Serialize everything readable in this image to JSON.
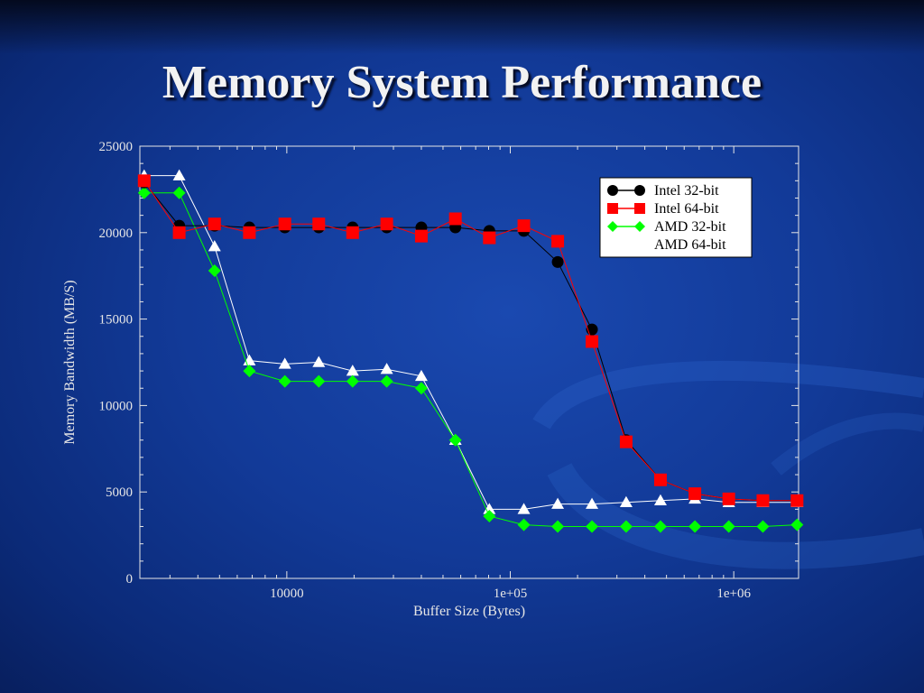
{
  "slide": {
    "title": "Memory System Performance"
  },
  "colors": {
    "intel32": "#000000",
    "intel64": "#ff0000",
    "amd32": "#00ff00",
    "amd64": "#ffffff",
    "frame": "#e6e6e6"
  },
  "chart_data": {
    "type": "line",
    "title": "",
    "xlabel": "Buffer Size (Bytes)",
    "ylabel": "Memory Bandwidth (MB/S)",
    "xscale": "log",
    "xlim": [
      2200,
      1950000
    ],
    "ylim": [
      0,
      25000
    ],
    "x_ticks": [
      10000,
      100000,
      1000000
    ],
    "x_tick_labels": [
      "10000",
      "1e+05",
      "1e+06"
    ],
    "y_ticks": [
      0,
      5000,
      10000,
      15000,
      20000,
      25000
    ],
    "y_tick_labels": [
      "0",
      "5000",
      "10000",
      "15000",
      "20000",
      "25000"
    ],
    "grid": false,
    "legend_position": "top-right",
    "x": [
      2300,
      3300,
      4750,
      6800,
      9800,
      13900,
      19700,
      28000,
      40000,
      56800,
      80600,
      115000,
      163000,
      232000,
      330000,
      470000,
      670000,
      950000,
      1350000,
      1920000
    ],
    "series": [
      {
        "name": "Intel 32-bit",
        "marker": "circle",
        "values": [
          22900,
          20400,
          20400,
          20300,
          20300,
          20300,
          20300,
          20300,
          20300,
          20300,
          20100,
          20100,
          18300,
          14400,
          8000,
          5700,
          4900,
          4600,
          4500,
          4500
        ]
      },
      {
        "name": "Intel 64-bit",
        "marker": "square",
        "values": [
          23000,
          20000,
          20500,
          20000,
          20500,
          20500,
          20000,
          20500,
          19800,
          20800,
          19700,
          20400,
          19500,
          13700,
          7900,
          5700,
          4900,
          4600,
          4500,
          4500
        ]
      },
      {
        "name": "AMD 32-bit",
        "marker": "diamond",
        "values": [
          22300,
          22300,
          17800,
          12000,
          11400,
          11400,
          11400,
          11400,
          11000,
          8000,
          3600,
          3100,
          3000,
          3000,
          3000,
          3000,
          3000,
          3000,
          3000,
          3100
        ]
      },
      {
        "name": "AMD 64-bit",
        "marker": "triangle",
        "values": [
          23300,
          23300,
          19200,
          12600,
          12400,
          12500,
          12000,
          12100,
          11700,
          8000,
          4000,
          4000,
          4300,
          4300,
          4400,
          4500,
          4600,
          4400,
          4400,
          4400
        ]
      }
    ]
  }
}
